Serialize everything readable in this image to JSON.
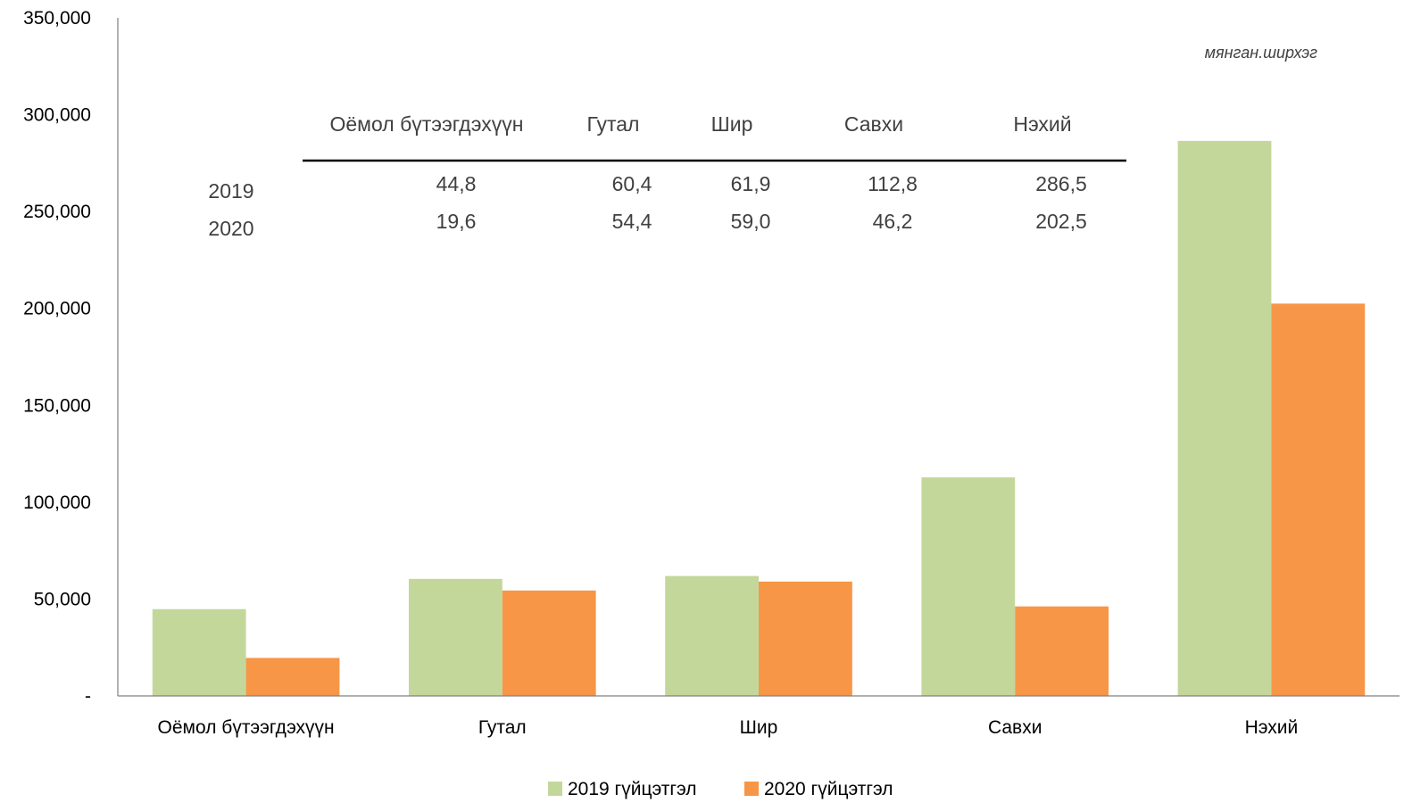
{
  "chart_data": {
    "type": "bar",
    "title": "",
    "xlabel": "",
    "ylabel": "",
    "unit_note": "мянган.ширхэг",
    "categories": [
      "Оёмол бүтээгдэхүүн",
      "Гутал",
      "Шир",
      "Савхи",
      "Нэхий"
    ],
    "series": [
      {
        "name": "2019 гүйцэтгэл",
        "color": "#c4d79b",
        "values": [
          44800,
          60400,
          61900,
          112800,
          286500
        ]
      },
      {
        "name": "2020 гүйцэтгэл",
        "color": "#f79646",
        "values": [
          19600,
          54400,
          59000,
          46200,
          202500
        ]
      }
    ],
    "ylim": [
      0,
      350000
    ],
    "yticks": [
      {
        "value": 0,
        "label": "-"
      },
      {
        "value": 50000,
        "label": "50,000"
      },
      {
        "value": 100000,
        "label": "100,000"
      },
      {
        "value": 150000,
        "label": "150,000"
      },
      {
        "value": 200000,
        "label": "200,000"
      },
      {
        "value": 250000,
        "label": "250,000"
      },
      {
        "value": 300000,
        "label": "300,000"
      },
      {
        "value": 350000,
        "label": "350,000"
      }
    ],
    "grid": false,
    "legend": "bottom-center",
    "data_table": {
      "headers": [
        "Оёмол бүтээгдэхүүн",
        "Гутал",
        "Шир",
        "Савхи",
        "Нэхий"
      ],
      "rows": [
        {
          "label": "2019",
          "values": [
            "44,8",
            "60,4",
            "61,9",
            "112,8",
            "286,5"
          ]
        },
        {
          "label": "2020",
          "values": [
            "19,6",
            "54,4",
            "59,0",
            "46,2",
            "202,5"
          ]
        }
      ]
    }
  }
}
